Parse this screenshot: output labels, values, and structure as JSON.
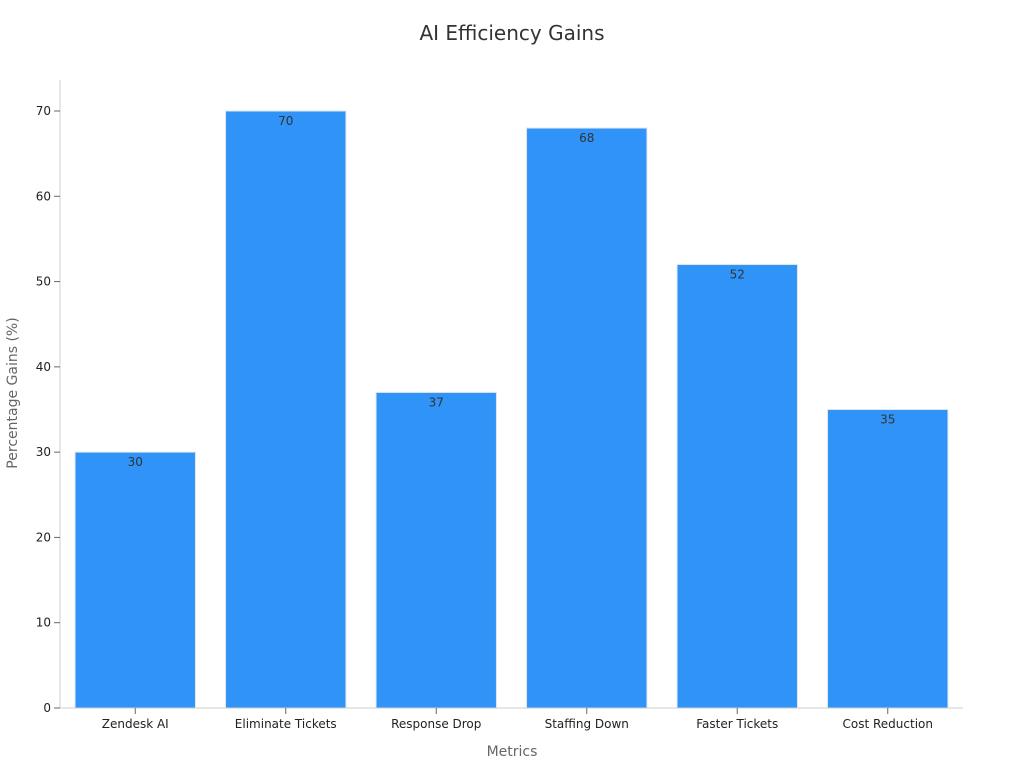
{
  "chart_data": {
    "type": "bar",
    "title": "AI Efficiency Gains",
    "xlabel": "Metrics",
    "ylabel": "Percentage Gains (%)",
    "categories": [
      "Zendesk AI",
      "Eliminate Tickets",
      "Response Drop",
      "Staffing Down",
      "Faster Tickets",
      "Cost Reduction"
    ],
    "values": [
      30,
      70,
      37,
      68,
      52,
      35
    ],
    "ylim": [
      0,
      70
    ],
    "yticks": [
      0,
      10,
      20,
      30,
      40,
      50,
      60,
      70
    ],
    "grid": false,
    "legend": "none",
    "bar_color": "#2F93F7"
  }
}
